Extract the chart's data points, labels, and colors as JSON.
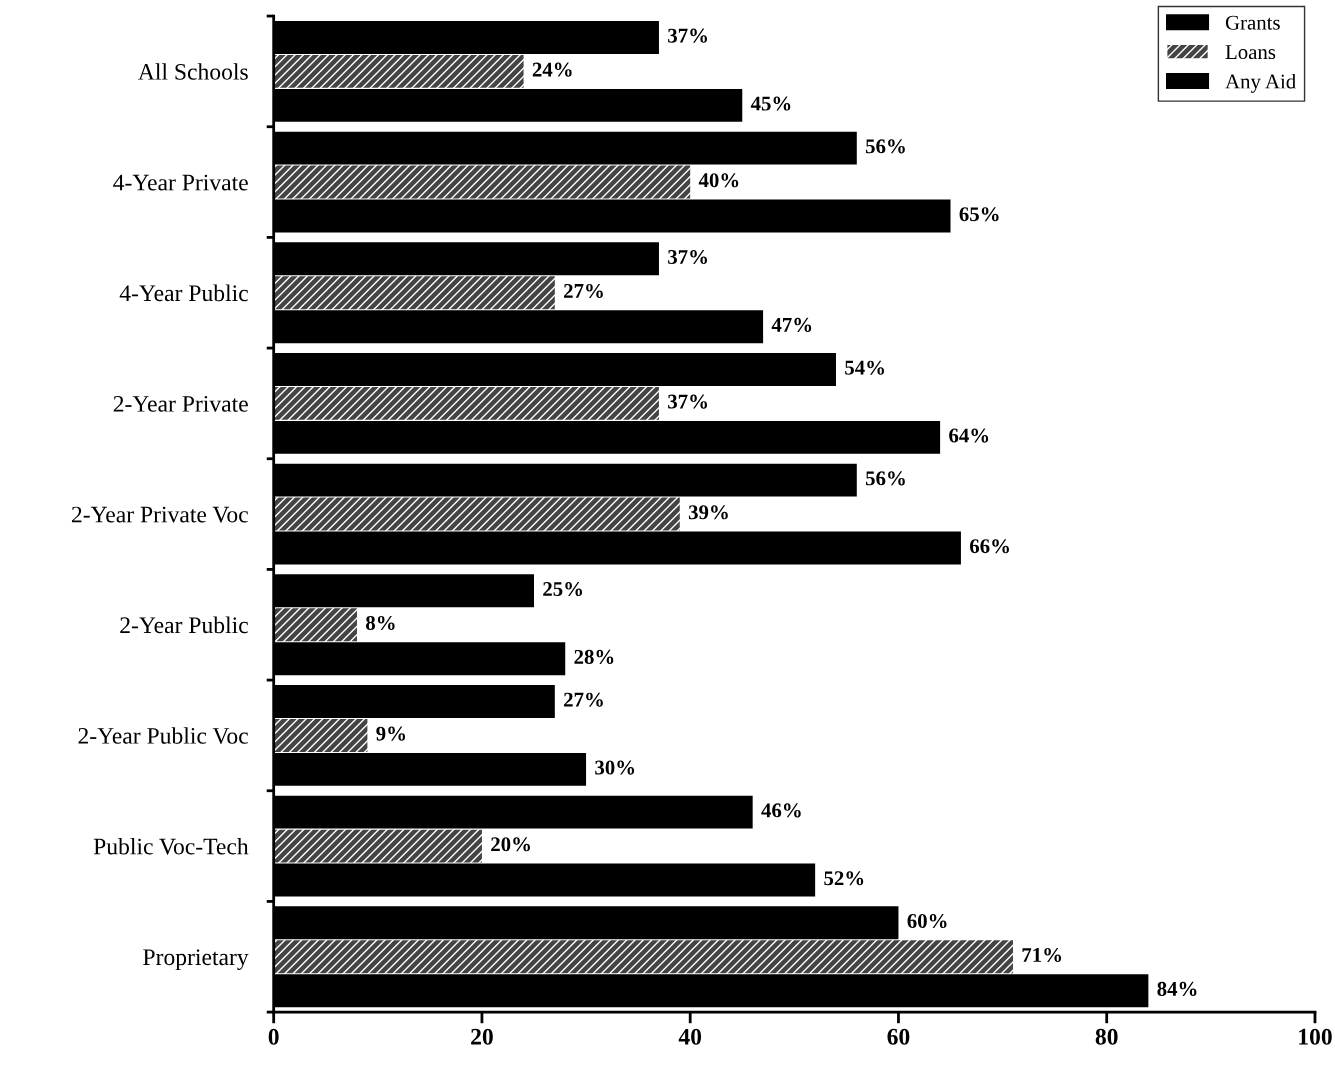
{
  "chart_data": {
    "type": "bar",
    "orientation": "horizontal",
    "categories": [
      "All Schools",
      "4-Year Private",
      "4-Year Public",
      "2-Year Private",
      "2-Year Private Voc",
      "2-Year Public",
      "2-Year Public Voc",
      "Public Voc-Tech",
      "Proprietary"
    ],
    "series": [
      {
        "name": "Grants",
        "color": "#000000",
        "values": [
          37,
          56,
          37,
          54,
          56,
          25,
          27,
          46,
          60
        ],
        "value_labels": [
          "37%",
          "56%",
          "37%",
          "54%",
          "56%",
          "25%",
          "27%",
          "46%",
          "60%"
        ]
      },
      {
        "name": "Loans",
        "color": "#444444",
        "values": [
          24,
          40,
          27,
          37,
          39,
          8,
          9,
          20,
          71
        ],
        "value_labels": [
          "24%",
          "40%",
          "27%",
          "37%",
          "39%",
          "8%",
          "9%",
          "20%",
          "71%"
        ]
      },
      {
        "name": "Any Aid",
        "color": "#000000",
        "values": [
          45,
          65,
          47,
          64,
          66,
          28,
          30,
          52,
          84
        ],
        "value_labels": [
          "45%",
          "65%",
          "47%",
          "64%",
          "66%",
          "28%",
          "30%",
          "52%",
          "84%"
        ]
      }
    ],
    "xlim": [
      0,
      100
    ],
    "xticks": [
      0,
      20,
      40,
      60,
      80,
      100
    ],
    "legend": "top right",
    "grid": false
  }
}
